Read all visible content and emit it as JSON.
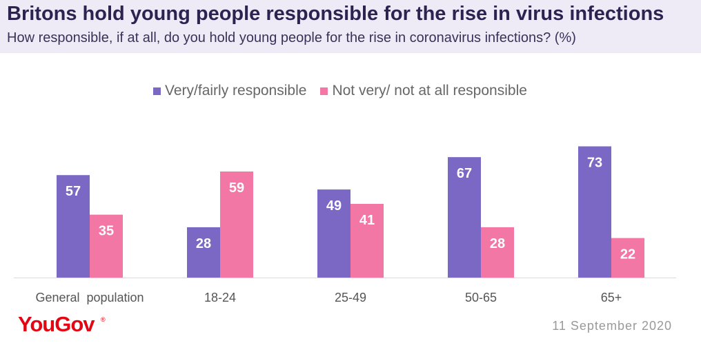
{
  "header": {
    "title": "Britons hold young people responsible for the rise in virus  infections",
    "subtitle": "How responsible, if at all, do you hold young people for the rise in coronavirus infections? (%)"
  },
  "colors": {
    "header_bg": "#efebf6",
    "series_1": "#7b68c4",
    "series_2": "#f277a4",
    "brand": "#e30613"
  },
  "chart_data": {
    "type": "bar",
    "categories": [
      "General  population",
      "18-24",
      "25-49",
      "50-65",
      "65+"
    ],
    "series": [
      {
        "name": "Very/fairly responsible",
        "values": [
          57,
          28,
          49,
          67,
          73
        ]
      },
      {
        "name": "Not very/ not at all responsible",
        "values": [
          35,
          59,
          41,
          28,
          22
        ]
      }
    ],
    "title": "Britons hold young people responsible for the rise in virus  infections",
    "subtitle": "How responsible, if at all, do you hold young people for the rise in coronavirus infections? (%)",
    "legend": "top",
    "grid": false
  },
  "footer": {
    "logo": "YouGov",
    "logo_mark": "®",
    "date": "11  September 2020"
  }
}
